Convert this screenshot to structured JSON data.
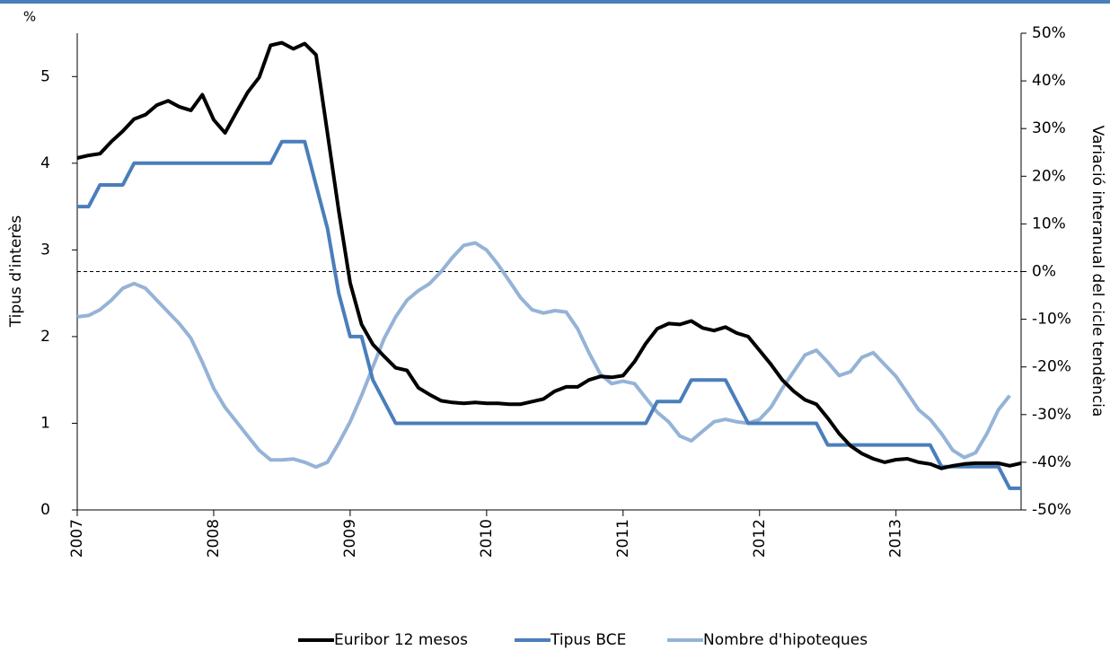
{
  "chart_data": {
    "type": "line",
    "y_unit_label": "%",
    "ylabel": "Tipus d'interès",
    "y2label": "Variació interanual del cicle tendència",
    "categories": [
      "2007",
      null,
      null,
      null,
      null,
      null,
      null,
      null,
      null,
      null,
      null,
      null,
      "2008",
      null,
      null,
      null,
      null,
      null,
      null,
      null,
      null,
      null,
      null,
      null,
      "2009",
      null,
      null,
      null,
      null,
      null,
      null,
      null,
      null,
      null,
      null,
      null,
      "2010",
      null,
      null,
      null,
      null,
      null,
      null,
      null,
      null,
      null,
      null,
      null,
      "2011",
      null,
      null,
      null,
      null,
      null,
      null,
      null,
      null,
      null,
      null,
      null,
      "2012",
      null,
      null,
      null,
      null,
      null,
      null,
      null,
      null,
      null,
      null,
      null,
      "2013",
      null,
      null,
      null,
      null,
      null,
      null,
      null,
      null,
      null,
      null,
      null
    ],
    "series": [
      {
        "name": "Euribor 12 mesos",
        "color": "#000000",
        "values": [
          4.06,
          4.09,
          4.11,
          4.25,
          4.37,
          4.51,
          4.56,
          4.67,
          4.72,
          4.65,
          4.61,
          4.79,
          4.5,
          4.35,
          4.59,
          4.82,
          4.99,
          5.36,
          5.39,
          5.32,
          5.38,
          5.25,
          4.35,
          3.45,
          2.62,
          2.14,
          1.91,
          1.77,
          1.64,
          1.61,
          1.41,
          1.33,
          1.26,
          1.24,
          1.23,
          1.24,
          1.23,
          1.23,
          1.22,
          1.22,
          1.25,
          1.28,
          1.37,
          1.42,
          1.42,
          1.5,
          1.54,
          1.53,
          1.55,
          1.71,
          1.92,
          2.09,
          2.15,
          2.14,
          2.18,
          2.1,
          2.07,
          2.11,
          2.04,
          2.0,
          1.84,
          1.68,
          1.5,
          1.37,
          1.27,
          1.22,
          1.06,
          0.88,
          0.74,
          0.65,
          0.59,
          0.55,
          0.58,
          0.59,
          0.55,
          0.53,
          0.48,
          0.51,
          0.53,
          0.54,
          0.54,
          0.54,
          0.51,
          0.54
        ]
      },
      {
        "name": "Tipus BCE",
        "color": "#4a7ebb",
        "values": [
          3.5,
          3.5,
          3.75,
          3.75,
          3.75,
          4,
          4,
          4,
          4,
          4,
          4,
          4,
          4,
          4,
          4,
          4,
          4,
          4,
          4.25,
          4.25,
          4.25,
          3.75,
          3.25,
          2.5,
          2,
          2,
          1.5,
          1.25,
          1,
          1,
          1,
          1,
          1,
          1,
          1,
          1,
          1,
          1,
          1,
          1,
          1,
          1,
          1,
          1,
          1,
          1,
          1,
          1,
          1,
          1,
          1,
          1.25,
          1.25,
          1.25,
          1.5,
          1.5,
          1.5,
          1.5,
          1.25,
          1,
          1,
          1,
          1,
          1,
          1,
          1,
          0.75,
          0.75,
          0.75,
          0.75,
          0.75,
          0.75,
          0.75,
          0.75,
          0.75,
          0.75,
          0.5,
          0.5,
          0.5,
          0.5,
          0.5,
          0.5,
          0.25,
          0.25
        ]
      },
      {
        "name": "Nombre d'hipoteques",
        "color": "#95b3d7",
        "axis": "y2",
        "values": [
          -9.5,
          -9.2,
          -8,
          -6,
          -3.5,
          -2.5,
          -3.5,
          -6,
          -8.5,
          -11,
          -14,
          -19,
          -24.5,
          -28.5,
          -31.5,
          -34.5,
          -37.5,
          -39.5,
          -39.5,
          -39.3,
          -40,
          -41,
          -40,
          -36,
          -31.5,
          -26,
          -20,
          -14,
          -9.5,
          -6,
          -4,
          -2.5,
          0,
          3,
          5.5,
          6,
          4.5,
          1.5,
          -2,
          -5.5,
          -8,
          -8.7,
          -8.2,
          -8.5,
          -12,
          -17,
          -21.5,
          -23.5,
          -23,
          -23.5,
          -26.5,
          -29.5,
          -31.5,
          -34.5,
          -35.5,
          -33.5,
          -31.5,
          -31,
          -31.5,
          -31.8,
          -31,
          -28.5,
          -24.5,
          -21,
          -17.5,
          -16.5,
          -19,
          -21.8,
          -21,
          -18,
          -17,
          -19.5,
          -22,
          -25.5,
          -29,
          -31,
          -34,
          -37.5,
          -39,
          -38,
          -34,
          -29,
          -26,
          null
        ]
      }
    ],
    "ylim": [
      0,
      5.5
    ],
    "yticks": [
      0,
      1,
      2,
      3,
      4,
      5
    ],
    "y2lim": [
      -50,
      50
    ],
    "y2ticks": [
      {
        "value": -50,
        "label": "-50%"
      },
      {
        "value": -40,
        "label": "-40%"
      },
      {
        "value": -30,
        "label": "-30%"
      },
      {
        "value": -20,
        "label": "-20%"
      },
      {
        "value": -10,
        "label": "-10%"
      },
      {
        "value": 0,
        "label": "0%"
      },
      {
        "value": 10,
        "label": "10%"
      },
      {
        "value": 20,
        "label": "20%"
      },
      {
        "value": 30,
        "label": "30%"
      },
      {
        "value": 40,
        "label": "40%"
      },
      {
        "value": 50,
        "label": "50%"
      }
    ],
    "reference_line": {
      "axis": "y2",
      "value": 0,
      "style": "dashed"
    },
    "legend": "bottom"
  }
}
